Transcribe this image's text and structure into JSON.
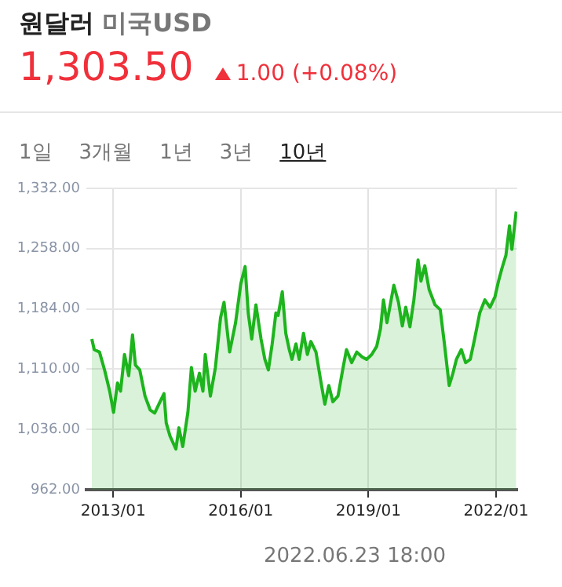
{
  "chart_data": {
    "type": "area",
    "title": "원달러",
    "subtitle": "미국USD",
    "annotations": [
      "1,303.50",
      "1.00 (+0.08%)",
      "1일",
      "3개월",
      "1년",
      "3년",
      "10년",
      "2022.06.23 18:00"
    ],
    "x": [
      "2012-07-01",
      "2012-07-22",
      "2012-09-05",
      "2012-10-19",
      "2012-12-02",
      "2013-01-04",
      "2013-02-07",
      "2013-03-05",
      "2013-04-08",
      "2013-05-14",
      "2013-06-16",
      "2013-07-11",
      "2013-08-17",
      "2013-10-01",
      "2013-11-14",
      "2013-12-23",
      "2014-02-07",
      "2014-03-13",
      "2014-04-01",
      "2014-05-03",
      "2014-06-23",
      "2014-07-19",
      "2014-08-21",
      "2014-10-04",
      "2014-11-03",
      "2014-12-05",
      "2015-01-11",
      "2015-02-10",
      "2015-03-02",
      "2015-04-15",
      "2015-05-28",
      "2015-07-11",
      "2015-08-10",
      "2015-09-27",
      "2015-11-17",
      "2016-01-01",
      "2016-02-07",
      "2016-03-05",
      "2016-04-04",
      "2016-05-10",
      "2016-06-23",
      "2016-07-26",
      "2016-08-25",
      "2016-09-27",
      "2016-10-29",
      "2016-11-17",
      "2016-12-23",
      "2017-01-22",
      "2017-02-21",
      "2017-03-16",
      "2017-04-19",
      "2017-05-17",
      "2017-06-23",
      "2017-07-26",
      "2017-08-25",
      "2017-10-08",
      "2017-11-21",
      "2017-12-23",
      "2018-01-26",
      "2018-03-02",
      "2018-04-15",
      "2018-05-25",
      "2018-06-27",
      "2018-08-10",
      "2018-09-23",
      "2018-11-07",
      "2018-12-16",
      "2019-01-29",
      "2019-03-13",
      "2019-04-15",
      "2019-05-10",
      "2019-06-09",
      "2019-08-07",
      "2019-09-16",
      "2019-10-19",
      "2019-11-17",
      "2019-12-23",
      "2020-01-26",
      "2020-03-02",
      "2020-03-27",
      "2020-04-29",
      "2020-06-05",
      "2020-07-26",
      "2020-09-09",
      "2020-10-15",
      "2020-11-25",
      "2020-12-27",
      "2021-01-26",
      "2021-03-09",
      "2021-04-15",
      "2021-05-25",
      "2021-07-01",
      "2021-08-14",
      "2021-09-27",
      "2021-11-10",
      "2021-12-23",
      "2022-01-22",
      "2022-02-21",
      "2022-03-27",
      "2022-04-26",
      "2022-05-17",
      "2022-06-23"
    ],
    "series": [
      {
        "color": "#1db41d",
        "values": [
          1147,
          1134,
          1131,
          1109,
          1083,
          1057,
          1093,
          1083,
          1128,
          1102,
          1152,
          1115,
          1109,
          1077,
          1060,
          1056,
          1070,
          1080,
          1044,
          1028,
          1012,
          1038,
          1015,
          1057,
          1112,
          1083,
          1105,
          1083,
          1128,
          1077,
          1112,
          1173,
          1192,
          1131,
          1167,
          1215,
          1236,
          1179,
          1147,
          1189,
          1147,
          1122,
          1109,
          1141,
          1179,
          1176,
          1205,
          1154,
          1134,
          1122,
          1141,
          1122,
          1154,
          1128,
          1144,
          1131,
          1093,
          1067,
          1090,
          1070,
          1077,
          1109,
          1134,
          1118,
          1131,
          1125,
          1122,
          1128,
          1138,
          1160,
          1195,
          1167,
          1213,
          1192,
          1163,
          1186,
          1162,
          1195,
          1244,
          1218,
          1237,
          1208,
          1189,
          1183,
          1141,
          1090,
          1105,
          1122,
          1134,
          1118,
          1122,
          1147,
          1179,
          1195,
          1186,
          1199,
          1218,
          1234,
          1250,
          1286,
          1257,
          1303.5
        ]
      }
    ],
    "xlim": [
      "2012-05-15",
      "2022-07-01"
    ],
    "xticks": [
      {
        "value": "2013-01",
        "label": "2013/01"
      },
      {
        "value": "2016-01",
        "label": "2016/01"
      },
      {
        "value": "2019-01",
        "label": "2019/01"
      },
      {
        "value": "2022-01",
        "label": "2022/01"
      }
    ],
    "ylim": [
      962,
      1332
    ],
    "yticks": [
      {
        "value": 962,
        "label": "962.00"
      },
      {
        "value": 1036,
        "label": "1,036.00"
      },
      {
        "value": 1110,
        "label": "1,110.00"
      },
      {
        "value": 1184,
        "label": "1,184.00"
      },
      {
        "value": 1258,
        "label": "1,258.00"
      },
      {
        "value": 1332,
        "label": "1,332.00"
      }
    ],
    "grid": true,
    "legend": false,
    "marker": "none",
    "line_style": "solid"
  }
}
